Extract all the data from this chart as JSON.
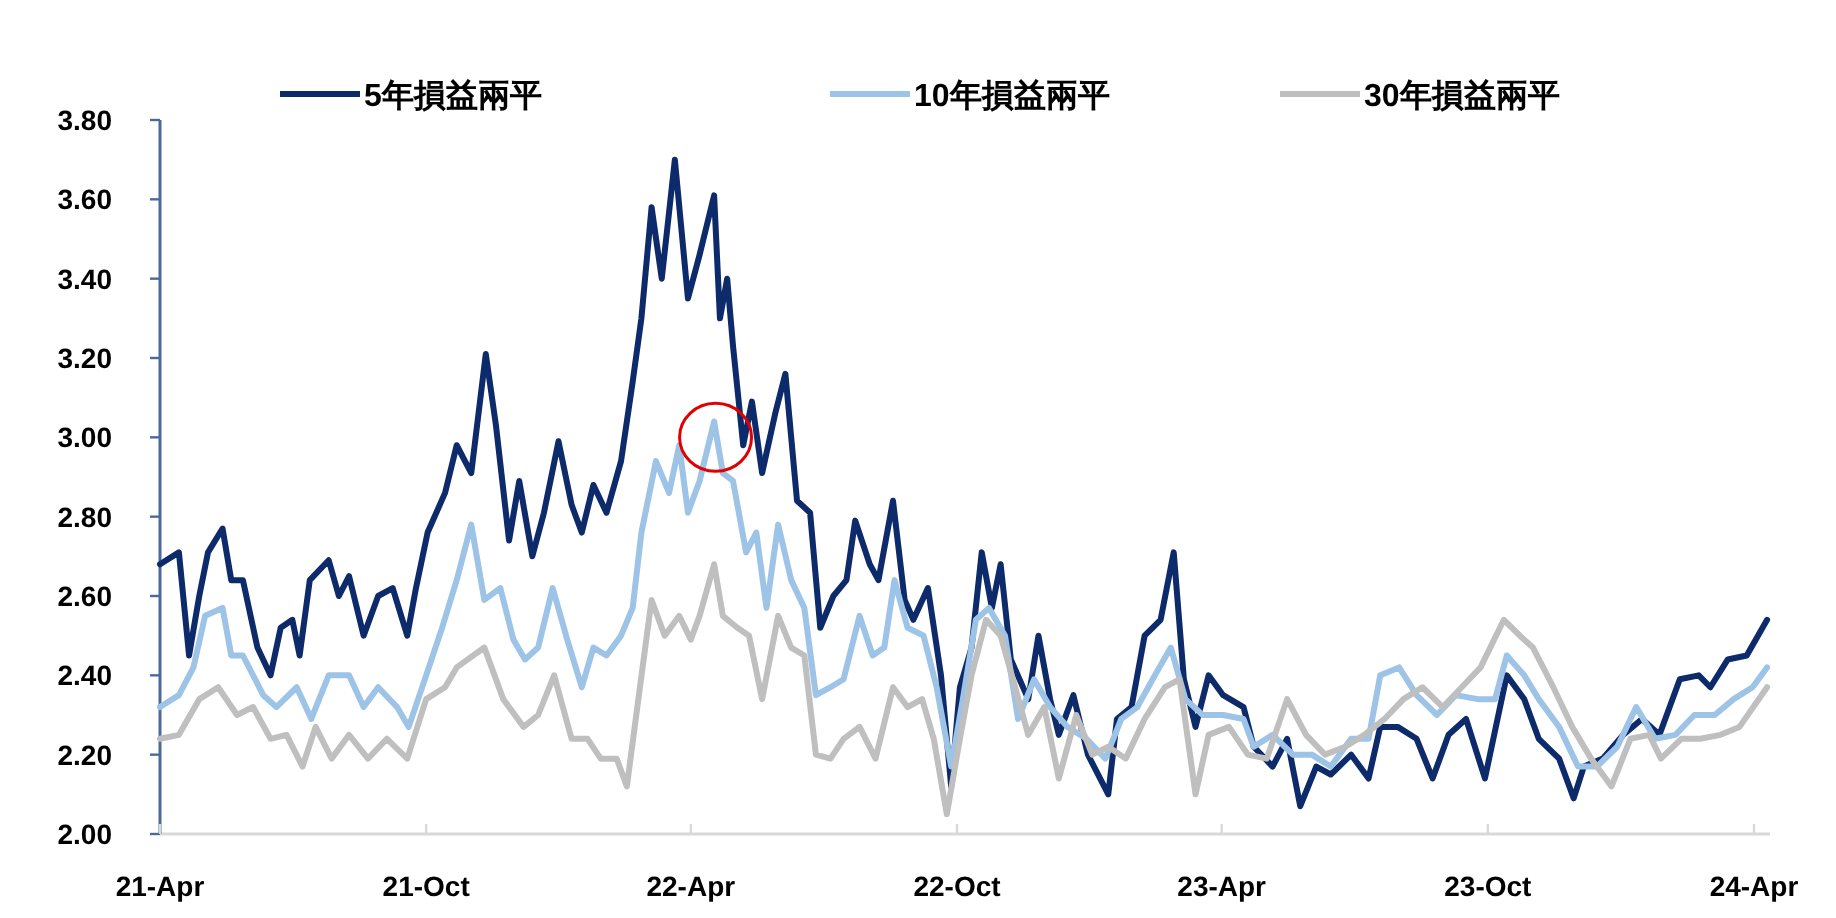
{
  "chart_data": {
    "type": "line",
    "xlim": [
      "2021-04-01",
      "2024-04-12"
    ],
    "xticks": [
      {
        "value": "2021-04-01",
        "label": "21-Apr"
      },
      {
        "value": "2021-10-01",
        "label": "21-Oct"
      },
      {
        "value": "2022-04-01",
        "label": "22-Apr"
      },
      {
        "value": "2022-10-01",
        "label": "22-Oct"
      },
      {
        "value": "2023-04-01",
        "label": "23-Apr"
      },
      {
        "value": "2023-10-01",
        "label": "23-Oct"
      },
      {
        "value": "2024-04-01",
        "label": "24-Apr"
      }
    ],
    "ylim": [
      2.0,
      3.8
    ],
    "yticks": [
      {
        "value": 2.0,
        "label": "2.00"
      },
      {
        "value": 2.2,
        "label": "2.20"
      },
      {
        "value": 2.4,
        "label": "2.40"
      },
      {
        "value": 2.6,
        "label": "2.60"
      },
      {
        "value": 2.8,
        "label": "2.80"
      },
      {
        "value": 3.0,
        "label": "3.00"
      },
      {
        "value": 3.2,
        "label": "3.20"
      },
      {
        "value": 3.4,
        "label": "3.40"
      },
      {
        "value": 3.6,
        "label": "3.60"
      },
      {
        "value": 3.8,
        "label": "3.80"
      }
    ],
    "grid": false,
    "legend": "top",
    "marker": "none",
    "line_style": "solid",
    "series": [
      {
        "name": "5年損益兩平",
        "color": "#0d2a6b",
        "x": [
          "2021-04-01",
          "2021-04-14",
          "2021-04-21",
          "2021-04-28",
          "2021-05-04",
          "2021-05-14",
          "2021-05-20",
          "2021-05-28",
          "2021-06-07",
          "2021-06-16",
          "2021-06-23",
          "2021-07-01",
          "2021-07-06",
          "2021-07-13",
          "2021-07-26",
          "2021-08-02",
          "2021-08-09",
          "2021-08-19",
          "2021-08-29",
          "2021-09-08",
          "2021-09-18",
          "2021-09-24",
          "2021-10-02",
          "2021-10-14",
          "2021-10-22",
          "2021-11-01",
          "2021-11-11",
          "2021-11-18",
          "2021-11-27",
          "2021-12-04",
          "2021-12-13",
          "2021-12-21",
          "2021-12-31",
          "2022-01-09",
          "2022-01-16",
          "2022-01-24",
          "2022-02-02",
          "2022-02-12",
          "2022-02-20",
          "2022-02-26",
          "2022-03-05",
          "2022-03-12",
          "2022-03-21",
          "2022-03-30",
          "2022-04-07",
          "2022-04-17",
          "2022-04-21",
          "2022-04-26",
          "2022-04-30",
          "2022-05-07",
          "2022-05-13",
          "2022-05-20",
          "2022-05-29",
          "2022-06-05",
          "2022-06-13",
          "2022-06-22",
          "2022-06-29",
          "2022-07-08",
          "2022-07-17",
          "2022-07-23",
          "2022-08-02",
          "2022-08-08",
          "2022-08-18",
          "2022-08-26",
          "2022-09-01",
          "2022-09-11",
          "2022-09-20",
          "2022-09-27",
          "2022-10-03",
          "2022-10-11",
          "2022-10-18",
          "2022-10-25",
          "2022-10-31",
          "2022-11-07",
          "2022-11-19",
          "2022-11-26",
          "2022-12-04",
          "2022-12-10",
          "2022-12-20",
          "2022-12-30",
          "2023-01-13",
          "2023-01-19",
          "2023-01-29",
          "2023-02-07",
          "2023-02-18",
          "2023-02-27",
          "2023-03-06",
          "2023-03-14",
          "2023-03-23",
          "2023-04-02",
          "2023-04-16",
          "2023-04-23",
          "2023-05-06",
          "2023-05-16",
          "2023-05-25",
          "2023-06-05",
          "2023-06-15",
          "2023-06-29",
          "2023-07-11",
          "2023-07-19",
          "2023-07-31",
          "2023-08-13",
          "2023-08-24",
          "2023-09-04",
          "2023-09-16",
          "2023-09-29",
          "2023-10-14",
          "2023-10-26",
          "2023-11-05",
          "2023-11-19",
          "2023-11-29",
          "2023-12-06",
          "2023-12-19",
          "2024-01-02",
          "2024-01-15",
          "2024-01-27",
          "2024-02-10",
          "2024-02-23",
          "2024-03-02",
          "2024-03-14",
          "2024-03-27",
          "2024-04-10"
        ],
        "values": [
          2.68,
          2.71,
          2.45,
          2.6,
          2.71,
          2.77,
          2.64,
          2.64,
          2.47,
          2.4,
          2.52,
          2.54,
          2.45,
          2.64,
          2.69,
          2.6,
          2.65,
          2.5,
          2.6,
          2.62,
          2.5,
          2.62,
          2.76,
          2.86,
          2.98,
          2.91,
          3.21,
          3.03,
          2.74,
          2.89,
          2.7,
          2.81,
          2.99,
          2.83,
          2.76,
          2.88,
          2.81,
          2.94,
          3.14,
          3.3,
          3.58,
          3.4,
          3.7,
          3.35,
          3.46,
          3.61,
          3.3,
          3.4,
          3.23,
          2.98,
          3.09,
          2.91,
          3.06,
          3.16,
          2.84,
          2.81,
          2.52,
          2.6,
          2.64,
          2.79,
          2.68,
          2.64,
          2.84,
          2.59,
          2.54,
          2.62,
          2.4,
          2.12,
          2.37,
          2.47,
          2.71,
          2.57,
          2.68,
          2.44,
          2.34,
          2.5,
          2.34,
          2.25,
          2.35,
          2.2,
          2.1,
          2.29,
          2.32,
          2.5,
          2.54,
          2.71,
          2.39,
          2.27,
          2.4,
          2.35,
          2.32,
          2.22,
          2.17,
          2.24,
          2.07,
          2.17,
          2.15,
          2.2,
          2.14,
          2.27,
          2.27,
          2.24,
          2.14,
          2.25,
          2.29,
          2.14,
          2.4,
          2.34,
          2.24,
          2.19,
          2.09,
          2.17,
          2.19,
          2.25,
          2.29,
          2.25,
          2.39,
          2.4,
          2.37,
          2.44,
          2.45,
          2.54
        ]
      },
      {
        "name": "10年損益兩平",
        "color": "#9dc3e6",
        "x": [
          "2021-04-01",
          "2021-04-14",
          "2021-04-24",
          "2021-05-02",
          "2021-05-14",
          "2021-05-20",
          "2021-05-28",
          "2021-06-11",
          "2021-06-20",
          "2021-07-04",
          "2021-07-14",
          "2021-07-26",
          "2021-08-09",
          "2021-08-19",
          "2021-08-29",
          "2021-09-11",
          "2021-09-19",
          "2021-10-01",
          "2021-10-12",
          "2021-10-22",
          "2021-11-01",
          "2021-11-10",
          "2021-11-21",
          "2021-11-30",
          "2021-12-08",
          "2021-12-17",
          "2021-12-27",
          "2022-01-06",
          "2022-01-16",
          "2022-01-24",
          "2022-02-02",
          "2022-02-12",
          "2022-02-20",
          "2022-02-26",
          "2022-03-08",
          "2022-03-17",
          "2022-03-24",
          "2022-03-30",
          "2022-04-07",
          "2022-04-17",
          "2022-04-23",
          "2022-04-30",
          "2022-05-09",
          "2022-05-16",
          "2022-05-23",
          "2022-05-31",
          "2022-06-09",
          "2022-06-18",
          "2022-06-26",
          "2022-07-06",
          "2022-07-15",
          "2022-07-26",
          "2022-08-04",
          "2022-08-12",
          "2022-08-19",
          "2022-08-28",
          "2022-09-08",
          "2022-09-17",
          "2022-09-27",
          "2022-10-05",
          "2022-10-14",
          "2022-10-23",
          "2022-11-03",
          "2022-11-12",
          "2022-11-23",
          "2022-12-04",
          "2022-12-16",
          "2022-12-29",
          "2023-01-11",
          "2023-01-22",
          "2023-02-02",
          "2023-02-14",
          "2023-02-25",
          "2023-03-07",
          "2023-03-19",
          "2023-04-02",
          "2023-04-16",
          "2023-04-23",
          "2023-05-06",
          "2023-05-20",
          "2023-06-02",
          "2023-06-15",
          "2023-06-29",
          "2023-07-11",
          "2023-07-19",
          "2023-08-01",
          "2023-08-13",
          "2023-08-27",
          "2023-09-09",
          "2023-09-24",
          "2023-10-06",
          "2023-10-14",
          "2023-10-26",
          "2023-11-05",
          "2023-11-19",
          "2023-12-02",
          "2023-12-15",
          "2023-12-29",
          "2024-01-11",
          "2024-01-24",
          "2024-02-07",
          "2024-02-20",
          "2024-03-05",
          "2024-03-18",
          "2024-03-31",
          "2024-04-10"
        ],
        "values": [
          2.32,
          2.35,
          2.42,
          2.55,
          2.57,
          2.45,
          2.45,
          2.35,
          2.32,
          2.37,
          2.29,
          2.4,
          2.4,
          2.32,
          2.37,
          2.32,
          2.27,
          2.4,
          2.52,
          2.64,
          2.78,
          2.59,
          2.62,
          2.49,
          2.44,
          2.47,
          2.62,
          2.49,
          2.37,
          2.47,
          2.45,
          2.5,
          2.57,
          2.76,
          2.94,
          2.86,
          2.98,
          2.81,
          2.89,
          3.04,
          2.91,
          2.89,
          2.71,
          2.76,
          2.57,
          2.78,
          2.64,
          2.57,
          2.35,
          2.37,
          2.39,
          2.55,
          2.45,
          2.47,
          2.64,
          2.52,
          2.5,
          2.37,
          2.17,
          2.34,
          2.54,
          2.57,
          2.5,
          2.29,
          2.39,
          2.32,
          2.27,
          2.24,
          2.19,
          2.29,
          2.32,
          2.4,
          2.47,
          2.34,
          2.3,
          2.3,
          2.29,
          2.22,
          2.25,
          2.2,
          2.2,
          2.17,
          2.24,
          2.24,
          2.4,
          2.42,
          2.35,
          2.3,
          2.35,
          2.34,
          2.34,
          2.45,
          2.4,
          2.34,
          2.27,
          2.17,
          2.17,
          2.22,
          2.32,
          2.24,
          2.25,
          2.3,
          2.3,
          2.34,
          2.37,
          2.42
        ]
      },
      {
        "name": "30年損益兩平",
        "color": "#bfbfbf",
        "x": [
          "2021-04-01",
          "2021-04-14",
          "2021-04-28",
          "2021-05-11",
          "2021-05-24",
          "2021-06-04",
          "2021-06-16",
          "2021-06-27",
          "2021-07-08",
          "2021-07-17",
          "2021-07-28",
          "2021-08-09",
          "2021-08-22",
          "2021-09-04",
          "2021-09-18",
          "2021-10-01",
          "2021-10-14",
          "2021-10-22",
          "2021-11-10",
          "2021-11-23",
          "2021-12-07",
          "2021-12-17",
          "2021-12-28",
          "2022-01-09",
          "2022-01-20",
          "2022-01-29",
          "2022-02-09",
          "2022-02-16",
          "2022-02-25",
          "2022-03-05",
          "2022-03-14",
          "2022-03-24",
          "2022-04-01",
          "2022-04-07",
          "2022-04-17",
          "2022-04-23",
          "2022-05-03",
          "2022-05-11",
          "2022-05-20",
          "2022-05-31",
          "2022-06-09",
          "2022-06-18",
          "2022-06-26",
          "2022-07-06",
          "2022-07-15",
          "2022-07-26",
          "2022-08-06",
          "2022-08-18",
          "2022-08-28",
          "2022-09-07",
          "2022-09-15",
          "2022-09-24",
          "2022-10-03",
          "2022-10-11",
          "2022-10-21",
          "2022-10-31",
          "2022-11-10",
          "2022-11-19",
          "2022-11-30",
          "2022-12-10",
          "2022-12-22",
          "2023-01-02",
          "2023-01-13",
          "2023-01-25",
          "2023-02-07",
          "2023-02-21",
          "2023-03-03",
          "2023-03-14",
          "2023-03-23",
          "2023-04-06",
          "2023-04-19",
          "2023-05-02",
          "2023-05-16",
          "2023-05-29",
          "2023-06-11",
          "2023-06-25",
          "2023-07-08",
          "2023-07-22",
          "2023-08-04",
          "2023-08-17",
          "2023-08-31",
          "2023-09-13",
          "2023-09-26",
          "2023-10-12",
          "2023-10-23",
          "2023-11-01",
          "2023-11-15",
          "2023-11-28",
          "2023-12-11",
          "2023-12-25",
          "2024-01-07",
          "2024-01-20",
          "2024-01-28",
          "2024-02-11",
          "2024-02-24",
          "2024-03-09",
          "2024-03-22",
          "2024-04-10"
        ],
        "values": [
          2.24,
          2.25,
          2.34,
          2.37,
          2.3,
          2.32,
          2.24,
          2.25,
          2.17,
          2.27,
          2.19,
          2.25,
          2.19,
          2.24,
          2.19,
          2.34,
          2.37,
          2.42,
          2.47,
          2.34,
          2.27,
          2.3,
          2.4,
          2.24,
          2.24,
          2.19,
          2.19,
          2.12,
          2.37,
          2.59,
          2.5,
          2.55,
          2.49,
          2.55,
          2.68,
          2.55,
          2.52,
          2.5,
          2.34,
          2.55,
          2.47,
          2.45,
          2.2,
          2.19,
          2.24,
          2.27,
          2.19,
          2.37,
          2.32,
          2.34,
          2.24,
          2.05,
          2.24,
          2.4,
          2.54,
          2.5,
          2.37,
          2.25,
          2.32,
          2.14,
          2.3,
          2.2,
          2.22,
          2.19,
          2.29,
          2.37,
          2.39,
          2.1,
          2.25,
          2.27,
          2.2,
          2.19,
          2.34,
          2.25,
          2.2,
          2.22,
          2.25,
          2.29,
          2.34,
          2.37,
          2.32,
          2.37,
          2.42,
          2.54,
          2.5,
          2.47,
          2.37,
          2.27,
          2.19,
          2.12,
          2.24,
          2.25,
          2.19,
          2.24,
          2.24,
          2.25,
          2.27,
          2.37
        ]
      }
    ]
  }
}
